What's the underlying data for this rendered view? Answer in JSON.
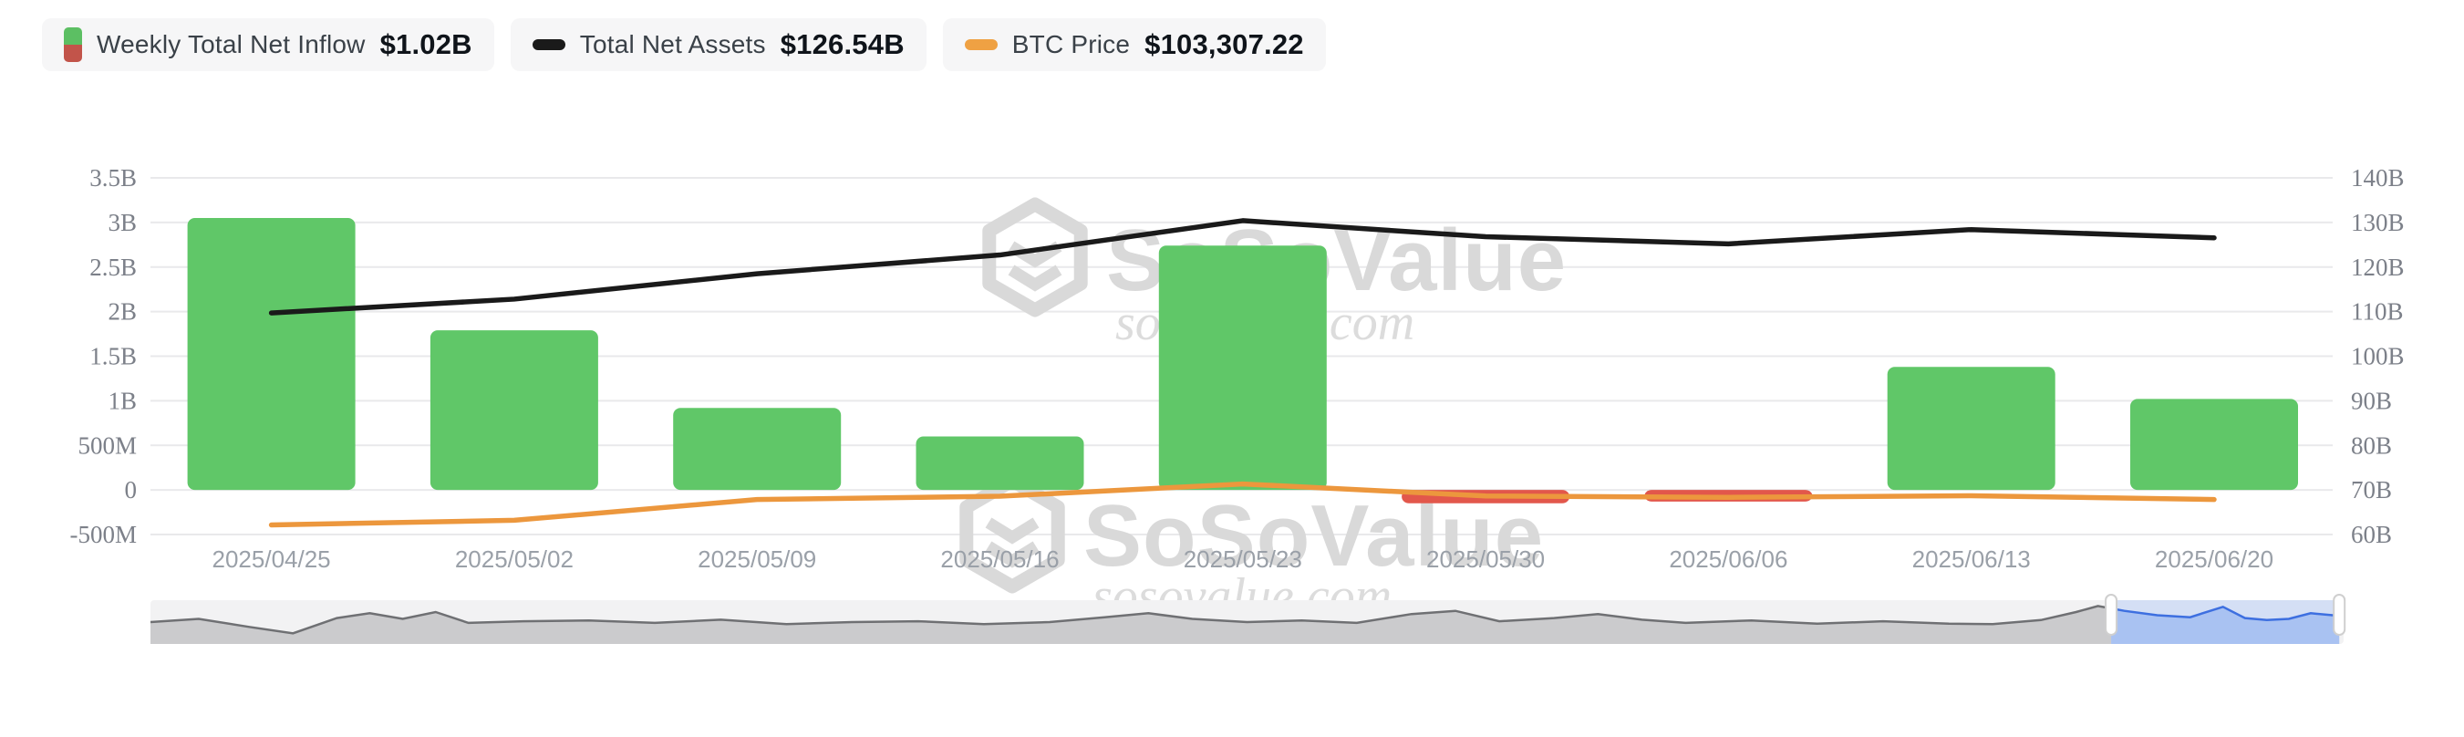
{
  "legend": {
    "items": [
      {
        "id": "weekly-net-inflow",
        "label": "Weekly Total Net Inflow",
        "value": "$1.02B",
        "icon": "split-bar-icon",
        "color_positive": "#5cbf63",
        "color_negative": "#c2544a"
      },
      {
        "id": "total-net-assets",
        "label": "Total Net Assets",
        "value": "$126.54B",
        "icon": "black-dash-icon",
        "color": "#1a1a1a"
      },
      {
        "id": "btc-price",
        "label": "BTC Price",
        "value": "$103,307.22",
        "icon": "orange-dash-icon",
        "color": "#efa143"
      }
    ]
  },
  "watermark": {
    "brand": "SoSoValue",
    "domain": "sosovalue.com"
  },
  "chart_data": {
    "type": "combo",
    "categories": [
      "2025/04/25",
      "2025/05/02",
      "2025/05/09",
      "2025/05/16",
      "2025/05/23",
      "2025/05/30",
      "2025/06/06",
      "2025/06/13",
      "2025/06/20"
    ],
    "series": [
      {
        "name": "Weekly Total Net Inflow",
        "type": "bar",
        "axis": "left",
        "unit": "billion USD",
        "values": [
          3.05,
          1.79,
          0.92,
          0.6,
          2.74,
          -0.15,
          -0.13,
          1.38,
          1.02
        ],
        "positive_color": "#60c768",
        "negative_color": "#e2574b"
      },
      {
        "name": "Total Net Assets",
        "type": "line",
        "axis": "right",
        "unit": "billion USD",
        "values": [
          109.7,
          112.8,
          118.5,
          122.7,
          130.4,
          126.8,
          125.2,
          128.4,
          126.54
        ],
        "color": "#1a1a1a"
      },
      {
        "name": "BTC Price",
        "type": "line",
        "axis": "hidden",
        "unit": "USD",
        "values": [
          94000,
          95700,
          103300,
          104500,
          109000,
          104600,
          104100,
          104700,
          103307.22
        ],
        "color": "#ec973d"
      }
    ],
    "left_axis": {
      "ticks": [
        "3.5B",
        "3B",
        "2.5B",
        "2B",
        "1.5B",
        "1B",
        "500M",
        "0",
        "-500M"
      ],
      "min": -0.5,
      "max": 3.5,
      "unit": "USD"
    },
    "right_axis": {
      "ticks": [
        "140B",
        "130B",
        "120B",
        "110B",
        "100B",
        "90B",
        "80B",
        "70B",
        "60B"
      ],
      "min": 60,
      "max": 140,
      "unit": "USD"
    },
    "btc_axis": {
      "min": 90500,
      "max": 221000,
      "visible": false
    },
    "grid": true,
    "legend_position": "top-left",
    "title": ""
  },
  "navigator": {
    "selection": {
      "start": 0.894,
      "end": 0.998
    },
    "colors": {
      "shadow_fill": "#cbcbcd",
      "shadow_line": "#6f7073",
      "selected_fill": "#a9c2f2",
      "selected_line": "#3d6fe0",
      "window": "#bcd0f6",
      "handle": "#ffffff",
      "handle_border": "#cfcfcf",
      "track": "#f2f2f3"
    },
    "shadow": [
      [
        0,
        0.5
      ],
      [
        0.022,
        0.42
      ],
      [
        0.045,
        0.62
      ],
      [
        0.065,
        0.78
      ],
      [
        0.085,
        0.4
      ],
      [
        0.1,
        0.28
      ],
      [
        0.115,
        0.42
      ],
      [
        0.13,
        0.25
      ],
      [
        0.145,
        0.52
      ],
      [
        0.17,
        0.48
      ],
      [
        0.2,
        0.46
      ],
      [
        0.23,
        0.52
      ],
      [
        0.26,
        0.44
      ],
      [
        0.29,
        0.55
      ],
      [
        0.32,
        0.5
      ],
      [
        0.35,
        0.48
      ],
      [
        0.38,
        0.55
      ],
      [
        0.41,
        0.5
      ],
      [
        0.435,
        0.38
      ],
      [
        0.455,
        0.28
      ],
      [
        0.475,
        0.42
      ],
      [
        0.5,
        0.5
      ],
      [
        0.525,
        0.46
      ],
      [
        0.55,
        0.52
      ],
      [
        0.575,
        0.3
      ],
      [
        0.595,
        0.22
      ],
      [
        0.615,
        0.48
      ],
      [
        0.64,
        0.4
      ],
      [
        0.66,
        0.3
      ],
      [
        0.68,
        0.44
      ],
      [
        0.7,
        0.52
      ],
      [
        0.73,
        0.46
      ],
      [
        0.76,
        0.54
      ],
      [
        0.79,
        0.48
      ],
      [
        0.82,
        0.54
      ],
      [
        0.84,
        0.55
      ],
      [
        0.862,
        0.45
      ],
      [
        0.878,
        0.25
      ],
      [
        0.888,
        0.1
      ],
      [
        0.9,
        0.22
      ],
      [
        0.915,
        0.33
      ],
      [
        0.93,
        0.38
      ],
      [
        0.945,
        0.12
      ],
      [
        0.955,
        0.4
      ],
      [
        0.965,
        0.45
      ],
      [
        0.975,
        0.42
      ],
      [
        0.985,
        0.28
      ],
      [
        0.995,
        0.33
      ],
      [
        1,
        0.32
      ]
    ]
  }
}
